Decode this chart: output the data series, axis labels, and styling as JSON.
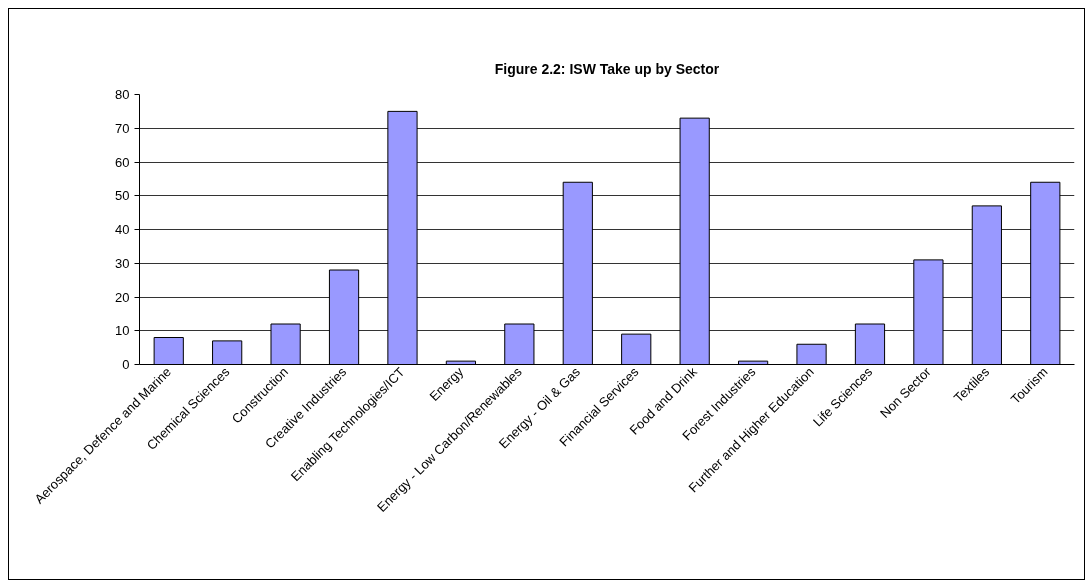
{
  "chart_data": {
    "type": "bar",
    "title": "Figure 2.2: ISW Take up by Sector",
    "categories": [
      "Aerospace, Defence and Marine",
      "Chemical Sciences",
      "Construction",
      "Creative Industries",
      "Enabling Technologies/ICT",
      "Energy",
      "Energy - Low Carbon/Renewables",
      "Energy - Oil & Gas",
      "Financial Services",
      "Food and Drink",
      "Forest Industries",
      "Further and Higher Education",
      "Life Sciences",
      "Non Sector",
      "Textiles",
      "Tourism"
    ],
    "values": [
      8,
      7,
      12,
      28,
      75,
      1,
      12,
      54,
      9,
      73,
      1,
      6,
      12,
      31,
      47,
      54
    ],
    "color": "#9999ff",
    "ylim": [
      0,
      80
    ],
    "yticks": [
      0,
      10,
      20,
      30,
      40,
      50,
      60,
      70,
      80
    ],
    "grid": "y"
  }
}
